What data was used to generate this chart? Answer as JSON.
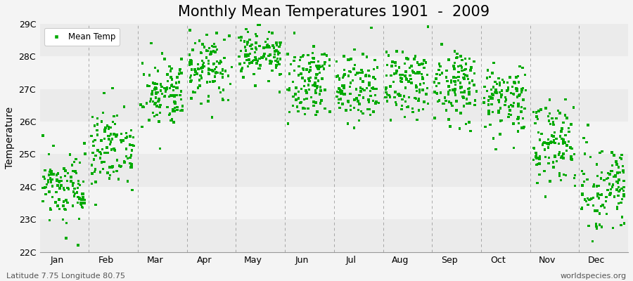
{
  "title": "Monthly Mean Temperatures 1901  -  2009",
  "ylabel": "Temperature",
  "subtitle_left": "Latitude 7.75 Longitude 80.75",
  "subtitle_right": "worldspecies.org",
  "legend_label": "Mean Temp",
  "marker_color": "#00aa00",
  "marker": "s",
  "marker_size": 2.5,
  "ylim": [
    22,
    29
  ],
  "yticks": [
    22,
    23,
    24,
    25,
    26,
    27,
    28,
    29
  ],
  "ytick_labels": [
    "22C",
    "23C",
    "24C",
    "25C",
    "26C",
    "27C",
    "28C",
    "29C"
  ],
  "months": [
    "Jan",
    "Feb",
    "Mar",
    "Apr",
    "May",
    "Jun",
    "Jul",
    "Aug",
    "Sep",
    "Oct",
    "Nov",
    "Dec"
  ],
  "num_years": 109,
  "monthly_means": [
    23.9,
    25.2,
    26.8,
    27.6,
    28.1,
    27.2,
    27.0,
    27.1,
    27.1,
    26.7,
    25.3,
    24.0
  ],
  "monthly_stds": [
    0.5,
    0.6,
    0.5,
    0.5,
    0.4,
    0.55,
    0.5,
    0.5,
    0.55,
    0.6,
    0.6,
    0.65
  ],
  "bg_color": "#f4f4f4",
  "band_colors": [
    "#ebebeb",
    "#f4f4f4"
  ],
  "grid_color": "#888888",
  "title_fontsize": 15,
  "label_fontsize": 10,
  "tick_fontsize": 9,
  "vline_positions": [
    1,
    2,
    3,
    4,
    5,
    6,
    7,
    8,
    9,
    10,
    11,
    12
  ]
}
